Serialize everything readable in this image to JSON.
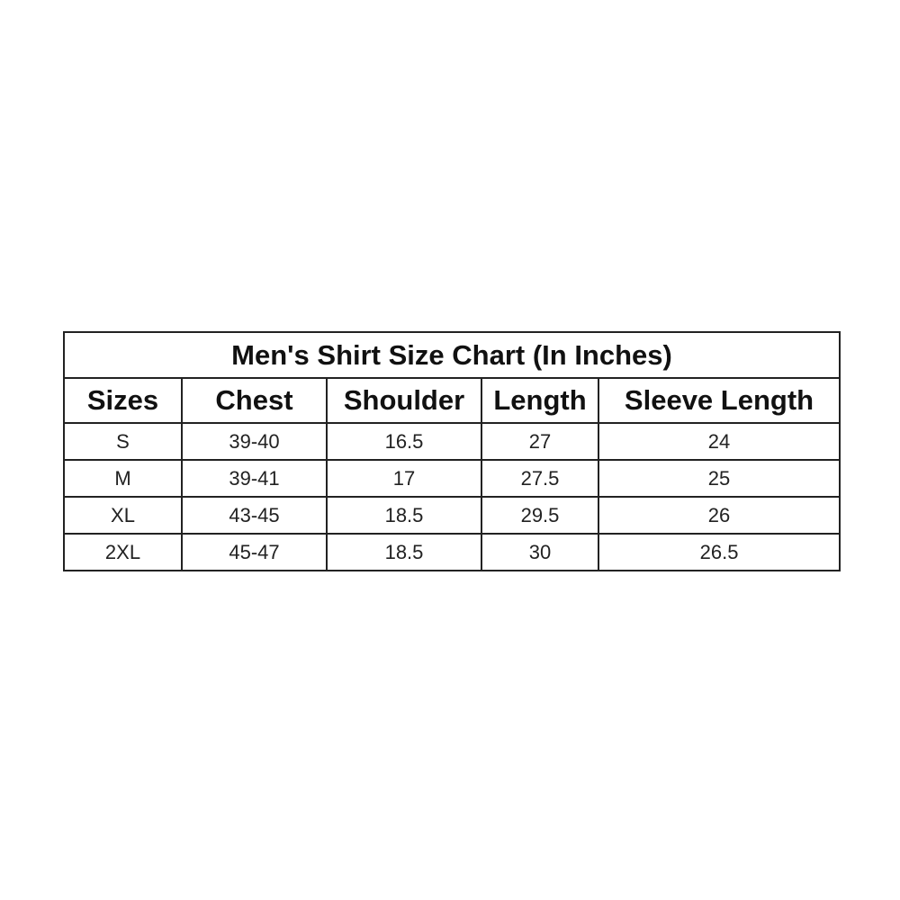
{
  "title": "Men's Shirt Size Chart (In Inches)",
  "columns": [
    "Sizes",
    "Chest",
    "Shoulder",
    "Length",
    "Sleeve Length"
  ],
  "rows": [
    [
      "S",
      "39-40",
      "16.5",
      "27",
      "24"
    ],
    [
      "M",
      "39-41",
      "17",
      "27.5",
      "25"
    ],
    [
      "XL",
      "43-45",
      "18.5",
      "29.5",
      "26"
    ],
    [
      "2XL",
      "45-47",
      "18.5",
      "30",
      "26.5"
    ]
  ]
}
